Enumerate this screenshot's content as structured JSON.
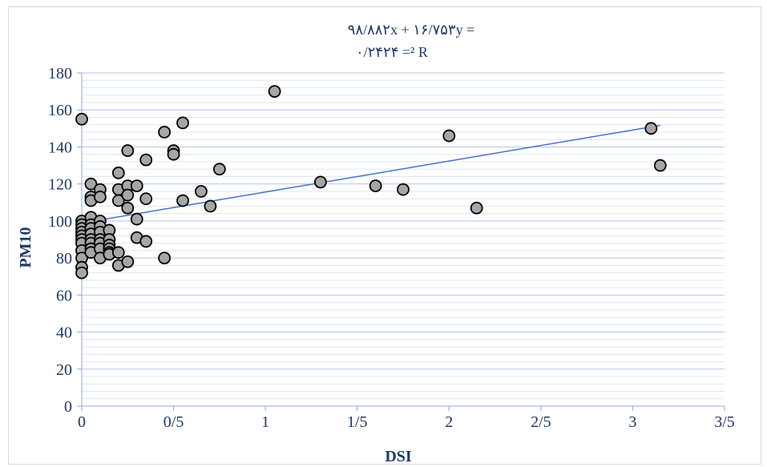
{
  "chart_data": {
    "type": "scatter",
    "title": "",
    "xlabel": "DSI",
    "ylabel": "PM10",
    "xlim": [
      0,
      3.5
    ],
    "ylim": [
      0,
      180
    ],
    "x_ticks": [
      0,
      0.5,
      1,
      1.5,
      2,
      2.5,
      3,
      3.5
    ],
    "x_tick_labels": [
      "0",
      "0/5",
      "1",
      "1/5",
      "2",
      "2/5",
      "3",
      "3/5"
    ],
    "y_ticks": [
      0,
      20,
      40,
      60,
      80,
      100,
      120,
      140,
      160,
      180
    ],
    "y_tick_labels": [
      "0",
      "20",
      "40",
      "60",
      "80",
      "100",
      "120",
      "140",
      "160",
      "180"
    ],
    "grid": true,
    "legend": "none",
    "annotations": {
      "equation_line1": "۹۸/۸۸۲x + ۱۶/۷۵۳y =",
      "equation_line2": "۰/۲۴۲۴ =² R"
    },
    "trendline": {
      "slope": 16.753,
      "intercept": 98.882,
      "x_range": [
        0,
        3.15
      ],
      "color": "#4472c4"
    },
    "marker": {
      "fill": "#a6a6a6",
      "stroke": "#000000"
    },
    "series": [
      {
        "x": [
          0,
          0,
          0,
          0,
          0,
          0,
          0,
          0,
          0,
          0,
          0,
          0,
          0.05,
          0.05,
          0.05,
          0.05,
          0.05,
          0.05,
          0.05,
          0.05,
          0.05,
          0.05,
          0.05,
          0.1,
          0.1,
          0.1,
          0.1,
          0.1,
          0.1,
          0.1,
          0.1,
          0.1,
          0.15,
          0.15,
          0.15,
          0.15,
          0.15,
          0.15,
          0.2,
          0.2,
          0.2,
          0.2,
          0.2,
          0.25,
          0.25,
          0.25,
          0.25,
          0.25,
          0.3,
          0.3,
          0.3,
          0.35,
          0.35,
          0.35,
          0.45,
          0.45,
          0.5,
          0.5,
          0.55,
          0.55,
          0.65,
          0.7,
          0.75,
          1.05,
          1.3,
          1.6,
          1.75,
          2.0,
          2.15,
          3.1,
          3.15
        ],
        "y": [
          155,
          100,
          98,
          96,
          94,
          92,
          90,
          88,
          84,
          80,
          75,
          72,
          120,
          113,
          111,
          102,
          98,
          96,
          93,
          90,
          88,
          85,
          83,
          117,
          113,
          100,
          97,
          94,
          90,
          88,
          85,
          80,
          95,
          90,
          87,
          85,
          83,
          82,
          126,
          117,
          111,
          83,
          76,
          138,
          119,
          114,
          107,
          78,
          119,
          101,
          91,
          133,
          112,
          89,
          148,
          80,
          138,
          136,
          153,
          111,
          116,
          108,
          128,
          170,
          121,
          119,
          117,
          146,
          107,
          150,
          130
        ]
      }
    ]
  }
}
